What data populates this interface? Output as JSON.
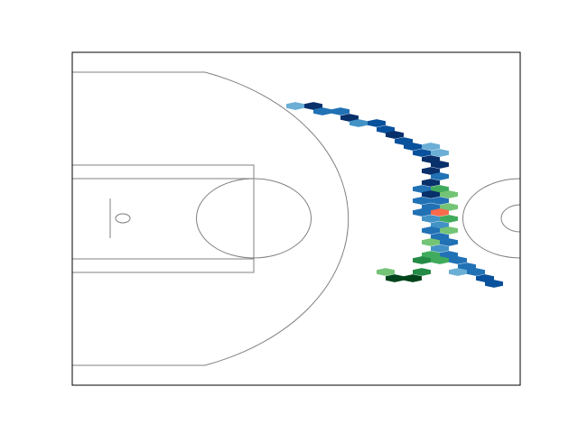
{
  "chart_data": {
    "type": "hexbin",
    "xlim": [
      0,
      49.6
    ],
    "ylim": [
      -18.45,
      18.45
    ],
    "x": [
      24.7,
      26.7,
      27.7,
      29.7,
      30.7,
      31.7,
      33.7,
      34.7,
      35.7,
      36.7,
      37.7,
      39.7,
      38.7,
      40.7,
      39.7,
      40.7,
      39.7,
      40.7,
      39.7,
      38.7,
      40.7,
      39.7,
      41.7,
      38.7,
      40.7,
      39.7,
      41.7,
      38.7,
      40.7,
      39.7,
      41.7,
      40.7,
      39.7,
      41.7,
      40.7,
      39.7,
      41.7,
      40.7,
      39.7,
      41.7,
      38.7,
      40.7,
      42.7,
      43.7,
      34.7,
      38.7,
      42.7,
      44.7,
      35.7,
      37.7,
      45.7,
      46.7
    ],
    "values": [
      12.5,
      12.5,
      11.9,
      11.9,
      11.2,
      10.6,
      10.6,
      9.9,
      9.3,
      8.6,
      8.0,
      8.0,
      7.3,
      7.3,
      6.6,
      6.0,
      5.3,
      4.7,
      4.0,
      3.3,
      3.3,
      2.7,
      2.7,
      2.0,
      2.0,
      1.3,
      1.3,
      0.7,
      0.7,
      0.0,
      0.0,
      -0.7,
      -1.3,
      -1.3,
      -2.0,
      -2.6,
      -2.6,
      -3.3,
      -4.0,
      -4.0,
      -4.6,
      -4.6,
      -4.6,
      -5.3,
      -5.9,
      -5.9,
      -5.9,
      -5.9,
      -6.6,
      -6.6,
      -6.6,
      -7.2
    ],
    "colors": [
      "#6baed6",
      "#08306b",
      "#2171b5",
      "#2171b5",
      "#08306b",
      "#4292c6",
      "#08519c",
      "#08519c",
      "#08306b",
      "#08519c",
      "#08519c",
      "#6baed6",
      "#08519c",
      "#6baed6",
      "#08306b",
      "#08306b",
      "#08306b",
      "#2171b5",
      "#08306b",
      "#2171b5",
      "#41ab5d",
      "#08306b",
      "#74c476",
      "#2171b5",
      "#2171b5",
      "#2171b5",
      "#74c476",
      "#2171b5",
      "#fb6a4a",
      "#4292c6",
      "#41ab5d",
      "#4292c6",
      "#2171b5",
      "#74c476",
      "#2171b5",
      "#74c476",
      "#2171b5",
      "#4292c6",
      "#41ab5d",
      "#2171b5",
      "#238b45",
      "#41ab5d",
      "#2171b5",
      "#2171b5",
      "#74c476",
      "#238b45",
      "#6baed6",
      "#2171b5",
      "#00441b",
      "#00441b",
      "#08519c",
      "#08519c"
    ]
  }
}
